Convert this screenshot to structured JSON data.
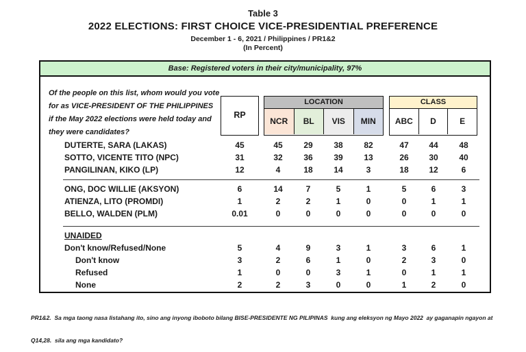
{
  "header": {
    "table_label": "Table 3",
    "title": "2022 ELECTIONS: FIRST CHOICE VICE-PRESIDENTIAL PREFERENCE",
    "subtitle": "December 1 - 6, 2021 / Philippines / PR1&2",
    "unit_note": "(In Percent)"
  },
  "base_bar": "Base: Registered voters in their city/municipality, 97%",
  "question_lines": [
    "Of the people on this list, whom would you vote",
    "for as VICE-PRESIDENT OF THE PHILIPPINES",
    "if the May 2022 elections were held today and",
    "they were candidates?"
  ],
  "columns": {
    "rp": "RP",
    "location_header": "LOCATION",
    "location_cols": [
      "NCR",
      "BL",
      "VIS",
      "MIN"
    ],
    "class_header": "CLASS",
    "class_cols": [
      "ABC",
      "D",
      "E"
    ]
  },
  "colors": {
    "base_bar": "#CDF2CD",
    "location_header": "#BFBFBF",
    "ncr": "#FBE5D6",
    "bl": "#E2EFDA",
    "vis": "#EDEDED",
    "min": "#D6DCE9",
    "class_header": "#FFF2CC",
    "border": "#111111"
  },
  "rows": [
    {
      "label": "DUTERTE, SARA (LAKAS)",
      "values": [
        "45",
        "45",
        "29",
        "38",
        "82",
        "47",
        "44",
        "48"
      ]
    },
    {
      "label": "SOTTO, VICENTE TITO (NPC)",
      "values": [
        "31",
        "32",
        "36",
        "39",
        "13",
        "26",
        "30",
        "40"
      ]
    },
    {
      "label": "PANGILINAN, KIKO (LP)",
      "values": [
        "12",
        "4",
        "18",
        "14",
        "3",
        "18",
        "12",
        "6"
      ]
    },
    {
      "label": "ONG, DOC WILLIE (AKSYON)",
      "values": [
        "6",
        "14",
        "7",
        "5",
        "1",
        "5",
        "6",
        "3"
      ]
    },
    {
      "label": "ATIENZA, LITO (PROMDI)",
      "values": [
        "1",
        "2",
        "2",
        "1",
        "0",
        "0",
        "1",
        "1"
      ]
    },
    {
      "label": "BELLO, WALDEN (PLM)",
      "values": [
        "0.01",
        "0",
        "0",
        "0",
        "0",
        "0",
        "0",
        "0"
      ]
    },
    {
      "label": "UNAIDED"
    },
    {
      "label": "Don't know/Refused/None",
      "values": [
        "5",
        "4",
        "9",
        "3",
        "1",
        "3",
        "6",
        "1"
      ]
    },
    {
      "label": "Don't know",
      "values": [
        "3",
        "2",
        "6",
        "1",
        "0",
        "2",
        "3",
        "0"
      ]
    },
    {
      "label": "Refused",
      "values": [
        "1",
        "0",
        "0",
        "3",
        "1",
        "0",
        "1",
        "1"
      ]
    },
    {
      "label": "None",
      "values": [
        "2",
        "2",
        "3",
        "0",
        "0",
        "1",
        "2",
        "0"
      ]
    }
  ],
  "footnote_lines": [
    "PR1&2.  Sa mga taong nasa listahang ito, sino ang inyong iboboto bilang BISE-PRESIDENTE NG PILIPINAS  kung ang eleksyon ng Mayo 2022  ay gaganapin ngayon at",
    "Q14,28.  sila ang mga kandidato?"
  ]
}
